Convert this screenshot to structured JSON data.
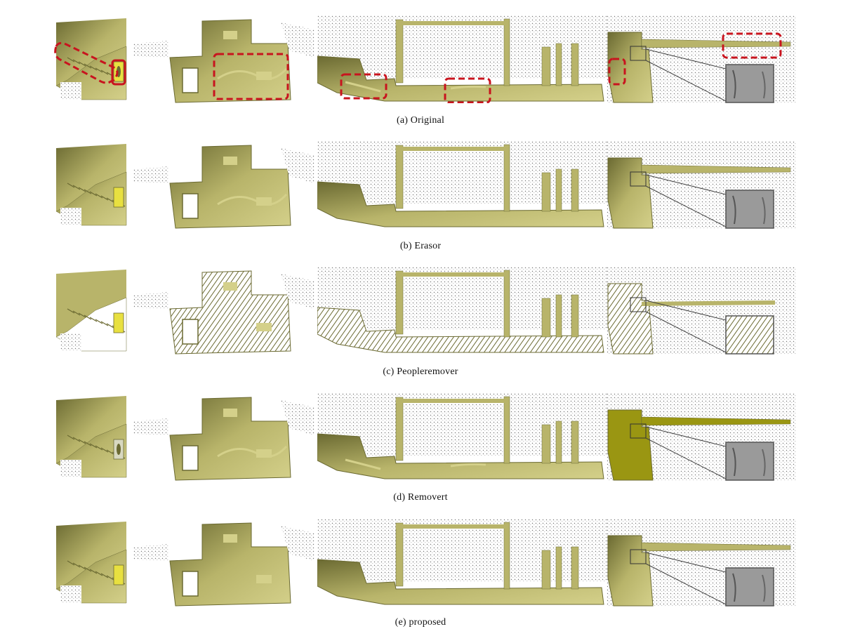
{
  "figure": {
    "rows": [
      {
        "id": "a",
        "caption": "(a)  Original",
        "style": "original"
      },
      {
        "id": "b",
        "caption": "(b)  Erasor",
        "style": "erasor"
      },
      {
        "id": "c",
        "caption": "(c)  Peopleremover",
        "style": "peopleremover"
      },
      {
        "id": "d",
        "caption": "(d)  Removert",
        "style": "removert"
      },
      {
        "id": "e",
        "caption": "(e)  proposed",
        "style": "proposed"
      }
    ],
    "colors": {
      "map_base": "#b8b46a",
      "map_dark": "#6b6a32",
      "map_light": "#d4d08a",
      "highlight": "#e8e040",
      "annotation": "#c8141e",
      "inset_gray": "#9a9a9a"
    }
  }
}
